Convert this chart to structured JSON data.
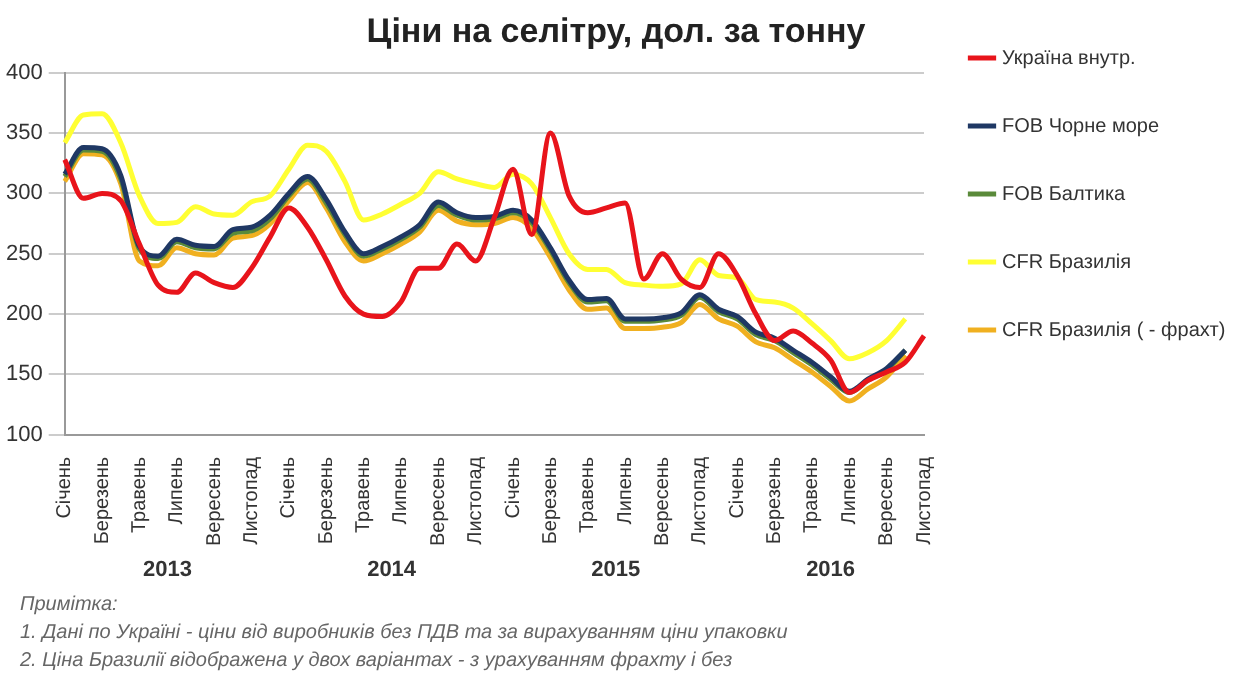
{
  "chart_data": {
    "type": "line",
    "title": "Ціни на селітру, дол. за тонну",
    "categories": [
      "Січень",
      null,
      "Березень",
      null,
      "Травень",
      null,
      "Липень",
      null,
      "Вересень",
      null,
      "Листопад",
      null,
      "Січень",
      null,
      "Березень",
      null,
      "Травень",
      null,
      "Липень",
      null,
      "Вересень",
      null,
      "Листопад",
      null,
      "Січень",
      null,
      "Березень",
      null,
      "Травень",
      null,
      "Липень",
      null,
      "Вересень",
      null,
      "Листопад",
      null,
      "Січень",
      null,
      "Березень",
      null,
      "Травень",
      null,
      "Липень",
      null,
      "Вересень",
      null,
      "Листопад"
    ],
    "series": [
      {
        "name": "Україна внутр.",
        "color": "#e8141b",
        "values": [
          328,
          296,
          300,
          294,
          258,
          224,
          218,
          234,
          226,
          222,
          238,
          264,
          288,
          272,
          245,
          215,
          200,
          198,
          210,
          238,
          238,
          258,
          244,
          280,
          320,
          266,
          350,
          298,
          284,
          288,
          292,
          229,
          250,
          229,
          222,
          250,
          232,
          200,
          178,
          186,
          176,
          162,
          135,
          145,
          152,
          160,
          182
        ]
      },
      {
        "name": "FOB Чорне море",
        "color": "#1f3864",
        "values": [
          316,
          338,
          337,
          315,
          256,
          248,
          262,
          257,
          256,
          270,
          272,
          282,
          300,
          314,
          295,
          268,
          250,
          256,
          264,
          274,
          293,
          284,
          280,
          281,
          286,
          278,
          255,
          228,
          212,
          213,
          196,
          196,
          197,
          201,
          216,
          204,
          198,
          185,
          180,
          170,
          160,
          148,
          136,
          146,
          155,
          170,
          null
        ]
      },
      {
        "name": "FOB Балтика",
        "color": "#5a8a3a",
        "values": [
          314,
          336,
          335,
          312,
          254,
          246,
          260,
          255,
          254,
          267,
          269,
          279,
          298,
          312,
          292,
          266,
          248,
          254,
          262,
          272,
          290,
          282,
          278,
          279,
          284,
          276,
          253,
          226,
          210,
          211,
          194,
          194,
          195,
          199,
          214,
          202,
          196,
          183,
          178,
          168,
          158,
          146,
          135,
          145,
          154,
          170,
          null
        ]
      },
      {
        "name": "CFR Бразилія",
        "color": "#ffff33",
        "values": [
          342,
          365,
          366,
          342,
          298,
          275,
          276,
          289,
          283,
          282,
          293,
          298,
          320,
          340,
          335,
          310,
          278,
          283,
          291,
          300,
          318,
          312,
          308,
          305,
          316,
          308,
          280,
          250,
          237,
          237,
          226,
          224,
          223,
          225,
          245,
          232,
          230,
          212,
          210,
          205,
          192,
          178,
          163,
          168,
          178,
          196,
          null
        ]
      },
      {
        "name": "CFR Бразилія ( - фрахт)",
        "color": "#f0b020",
        "values": [
          310,
          333,
          332,
          308,
          244,
          240,
          255,
          250,
          249,
          263,
          265,
          275,
          294,
          309,
          288,
          260,
          244,
          250,
          258,
          268,
          286,
          277,
          274,
          275,
          280,
          271,
          247,
          220,
          204,
          205,
          188,
          188,
          189,
          193,
          208,
          196,
          190,
          177,
          172,
          162,
          152,
          140,
          128,
          138,
          148,
          166,
          null
        ]
      }
    ],
    "ylim": [
      100,
      400
    ],
    "yticks": [
      100,
      150,
      200,
      250,
      300,
      350,
      400
    ],
    "grid": "y",
    "legend": "right",
    "marker": "none",
    "line_style": "solid",
    "annotations": [
      "2013",
      "2014",
      "2015",
      "2016",
      "Примітка:",
      "1. Дані по Україні - ціни від виробників без ПДВ та за вирахуванням ціни упаковки",
      "2. Ціна Бразилії відображена у двох варіантах - з урахуванням фрахту і без"
    ]
  }
}
